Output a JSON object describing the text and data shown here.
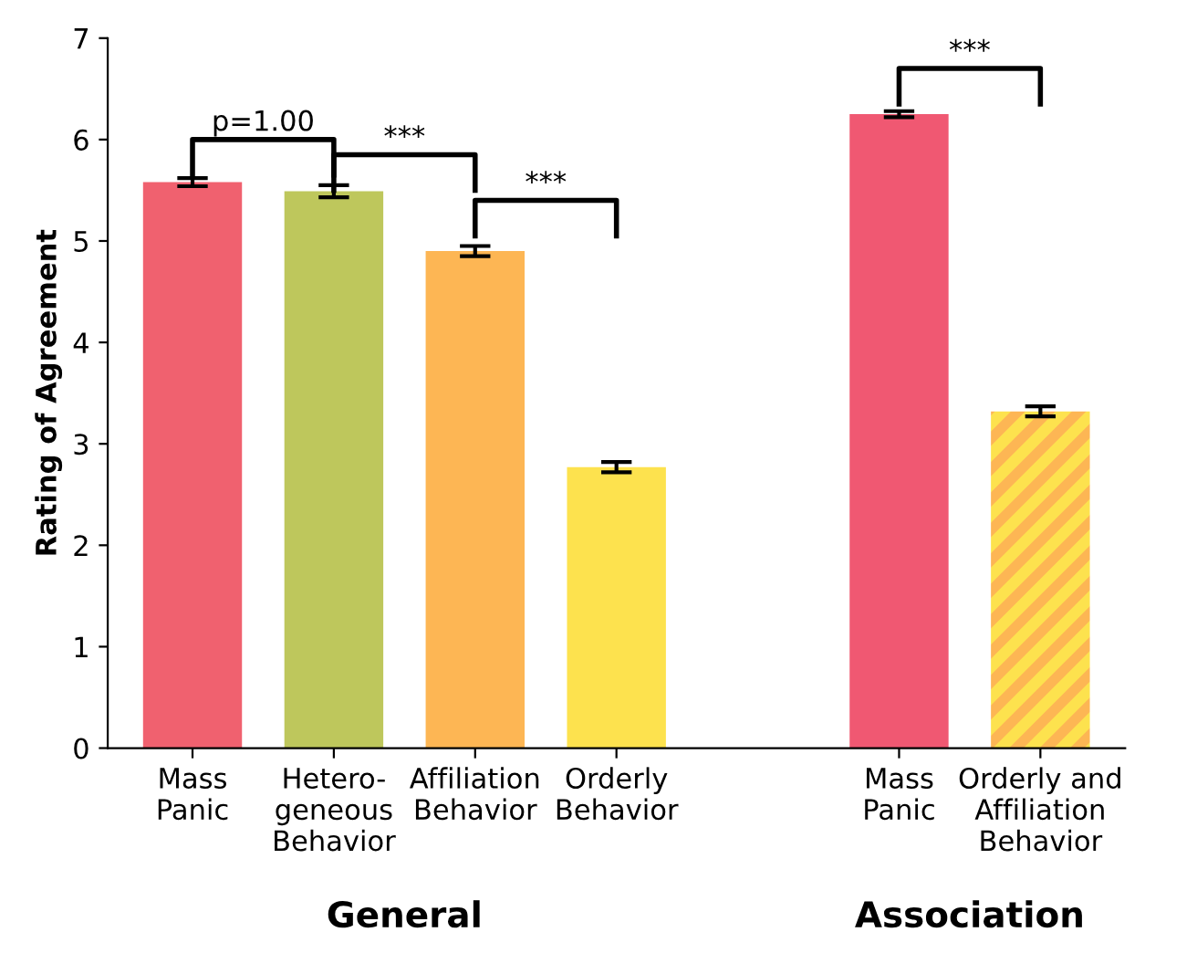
{
  "chart_data": {
    "type": "bar",
    "ylabel": "Rating of Agreement",
    "categories": [
      "Mass\nPanic",
      "Hetero-\ngeneous\nBehavior",
      "Affiliation\nBehavior",
      "Orderly\nBehavior",
      null,
      "Mass\nPanic",
      "Orderly and\nAffiliation\nBehavior"
    ],
    "values": [
      5.58,
      5.49,
      4.9,
      2.77,
      null,
      6.25,
      3.32
    ],
    "errors": [
      0.04,
      0.06,
      0.05,
      0.05,
      null,
      0.03,
      0.05
    ],
    "colors": [
      "#f0616f",
      "#bec75c",
      "#fdb654",
      "#fde24e",
      "#ffffff",
      "#f05872",
      "#fde24e"
    ],
    "ylim": [
      0,
      7
    ],
    "yticks": [
      0,
      1,
      2,
      3,
      4,
      5,
      6,
      7
    ],
    "grid": false,
    "annotations": [
      "p=1.00",
      "***",
      "***",
      "***",
      "General",
      "Association"
    ]
  }
}
